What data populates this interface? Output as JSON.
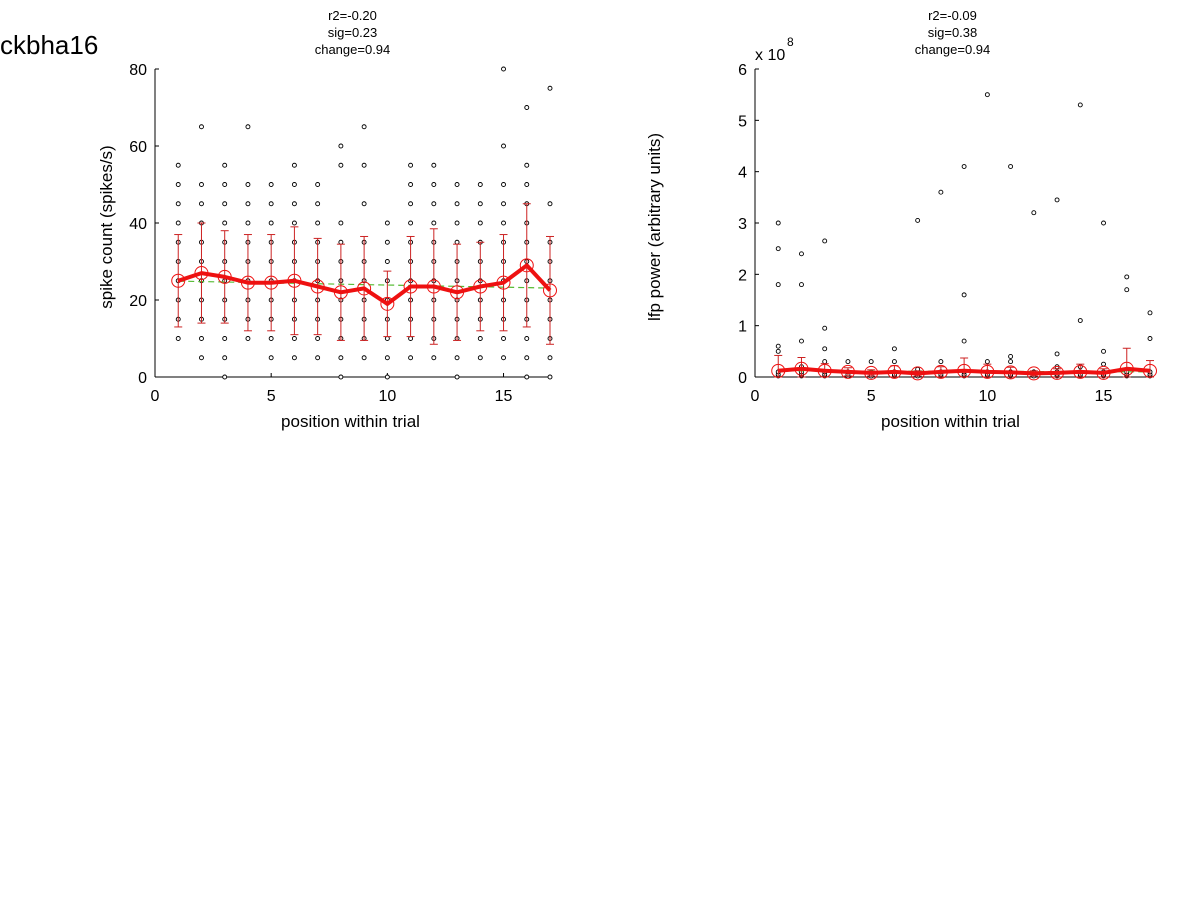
{
  "figure": {
    "label": "ckbha16"
  },
  "chart_data": [
    {
      "type": "scatter",
      "title_lines": [
        "r2=-0.20",
        "sig=0.23",
        "change=0.94"
      ],
      "xlabel": "position within trial",
      "ylabel": "spike count (spikes/s)",
      "xlim": [
        0,
        17
      ],
      "ylim": [
        0,
        80
      ],
      "xticks": [
        0,
        5,
        10,
        15
      ],
      "yticks": [
        0,
        20,
        40,
        60,
        80
      ],
      "exponent_label": "",
      "grid": false,
      "colors": {
        "points": "#000000",
        "mean": "#ee1111",
        "errorbar": "#cc2222",
        "fit": "#55bb33"
      },
      "points_x": [
        1,
        2,
        3,
        4,
        5,
        6,
        7,
        8,
        9,
        10,
        11,
        12,
        13,
        14,
        15,
        16,
        17
      ],
      "points": [
        [
          10,
          15,
          20,
          25,
          30,
          35,
          40,
          45,
          50,
          55
        ],
        [
          5,
          10,
          15,
          20,
          25,
          30,
          35,
          40,
          45,
          50,
          65
        ],
        [
          0,
          5,
          10,
          15,
          20,
          25,
          30,
          35,
          40,
          45,
          50,
          55
        ],
        [
          10,
          15,
          20,
          25,
          30,
          35,
          40,
          45,
          50,
          65
        ],
        [
          5,
          10,
          15,
          20,
          25,
          30,
          35,
          40,
          45,
          50
        ],
        [
          5,
          10,
          15,
          20,
          25,
          30,
          35,
          40,
          45,
          50,
          55
        ],
        [
          5,
          10,
          15,
          20,
          25,
          30,
          35,
          40,
          45,
          50
        ],
        [
          0,
          5,
          10,
          15,
          20,
          25,
          30,
          35,
          40,
          55,
          60
        ],
        [
          5,
          10,
          15,
          20,
          25,
          30,
          35,
          45,
          55,
          65
        ],
        [
          0,
          5,
          10,
          15,
          20,
          25,
          30,
          35,
          40
        ],
        [
          5,
          10,
          15,
          20,
          25,
          30,
          35,
          40,
          45,
          50,
          55
        ],
        [
          5,
          10,
          15,
          20,
          25,
          30,
          35,
          40,
          45,
          50,
          55
        ],
        [
          0,
          5,
          10,
          15,
          20,
          25,
          30,
          35,
          40,
          45,
          50
        ],
        [
          5,
          10,
          15,
          20,
          25,
          30,
          35,
          40,
          45,
          50
        ],
        [
          5,
          10,
          15,
          20,
          25,
          30,
          35,
          40,
          45,
          50,
          60,
          80
        ],
        [
          0,
          5,
          10,
          15,
          20,
          25,
          30,
          35,
          40,
          45,
          50,
          55,
          70
        ],
        [
          0,
          5,
          10,
          15,
          20,
          25,
          30,
          35,
          45,
          75
        ]
      ],
      "mean": {
        "x": [
          1,
          2,
          3,
          4,
          5,
          6,
          7,
          8,
          9,
          10,
          11,
          12,
          13,
          14,
          15,
          16,
          17
        ],
        "y": [
          25,
          27,
          26,
          24.5,
          24.5,
          25,
          23.5,
          22,
          23,
          19,
          23.5,
          23.5,
          22,
          23.5,
          24.5,
          29,
          22.5
        ]
      },
      "error": [
        12,
        13,
        12,
        12.5,
        12.5,
        14,
        12.5,
        12.5,
        13.5,
        8.5,
        13,
        15,
        12.5,
        11.5,
        12.5,
        16,
        14
      ],
      "fit": {
        "x": [
          1,
          17
        ],
        "y": [
          24.9,
          23.1
        ]
      }
    },
    {
      "type": "scatter",
      "title_lines": [
        "r2=-0.09",
        "sig=0.38",
        "change=0.94"
      ],
      "xlabel": "position within trial",
      "ylabel": "lfp power (arbitrary units)",
      "xlim": [
        0,
        17
      ],
      "ylim": [
        0,
        6
      ],
      "xticks": [
        0,
        5,
        10,
        15
      ],
      "yticks": [
        0,
        1,
        2,
        3,
        4,
        5,
        6
      ],
      "exponent_label": "x 10",
      "exponent_value": "8",
      "grid": false,
      "colors": {
        "points": "#000000",
        "mean": "#ee1111",
        "errorbar": "#cc2222",
        "fit": "#55bb33"
      },
      "points_x": [
        1,
        2,
        3,
        4,
        5,
        6,
        7,
        8,
        9,
        10,
        11,
        12,
        13,
        14,
        15,
        16,
        17
      ],
      "points": [
        [
          0.02,
          0.05,
          0.1,
          0.5,
          0.6,
          1.8,
          2.5,
          3.0
        ],
        [
          0.02,
          0.05,
          0.1,
          0.2,
          0.7,
          1.8,
          2.4
        ],
        [
          0.02,
          0.05,
          0.1,
          0.3,
          0.55,
          0.95,
          2.65
        ],
        [
          0.02,
          0.05,
          0.1,
          0.3
        ],
        [
          0.02,
          0.05,
          0.1,
          0.3
        ],
        [
          0.02,
          0.05,
          0.1,
          0.3,
          0.55
        ],
        [
          0.02,
          0.05,
          0.1,
          0.15,
          3.05
        ],
        [
          0.02,
          0.05,
          0.1,
          0.3,
          3.6
        ],
        [
          0.02,
          0.05,
          0.1,
          0.7,
          1.6,
          4.1
        ],
        [
          0.02,
          0.05,
          0.1,
          0.3,
          5.5
        ],
        [
          0.02,
          0.05,
          0.1,
          0.3,
          0.4,
          4.1
        ],
        [
          0.02,
          0.05,
          0.1,
          3.2
        ],
        [
          0.02,
          0.05,
          0.1,
          0.2,
          0.45,
          3.45
        ],
        [
          0.02,
          0.05,
          0.1,
          0.2,
          1.1,
          5.3
        ],
        [
          0.02,
          0.05,
          0.1,
          0.25,
          0.5,
          3.0
        ],
        [
          0.02,
          0.05,
          0.1,
          1.7,
          1.95
        ],
        [
          0.02,
          0.05,
          0.1,
          0.75,
          1.25
        ]
      ],
      "mean": {
        "x": [
          1,
          2,
          3,
          4,
          5,
          6,
          7,
          8,
          9,
          10,
          11,
          12,
          13,
          14,
          15,
          16,
          17
        ],
        "y": [
          0.12,
          0.16,
          0.12,
          0.1,
          0.08,
          0.1,
          0.07,
          0.1,
          0.12,
          0.1,
          0.09,
          0.07,
          0.08,
          0.1,
          0.08,
          0.16,
          0.12
        ]
      },
      "error": [
        0.3,
        0.22,
        0.14,
        0.08,
        0.06,
        0.12,
        0.05,
        0.1,
        0.25,
        0.15,
        0.1,
        0.05,
        0.08,
        0.15,
        0.08,
        0.4,
        0.2
      ],
      "fit": {
        "x": [
          1,
          17
        ],
        "y": [
          0.12,
          0.1
        ]
      }
    }
  ]
}
